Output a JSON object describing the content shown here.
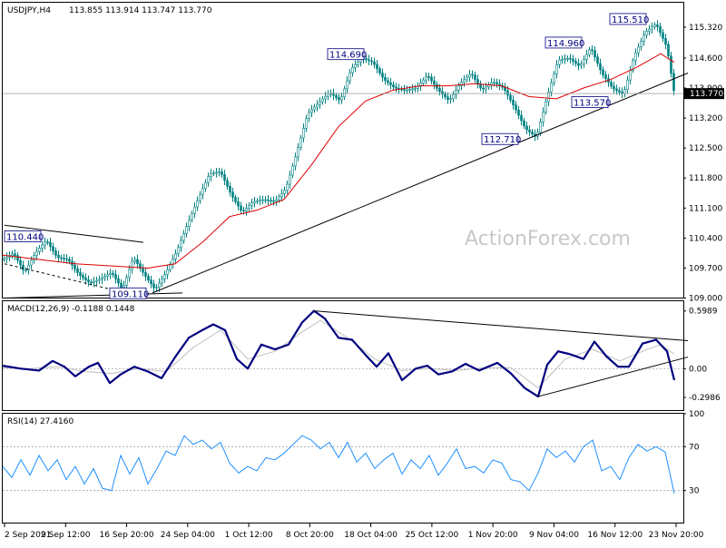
{
  "chart_data": [
    {
      "type": "candlestick",
      "symbol": "USDJPY,H4",
      "ohlc_readout": "113.855 113.914 113.747 113.770",
      "y_ticks": [
        "115.320",
        "114.600",
        "113.900",
        "113.200",
        "112.500",
        "111.800",
        "111.100",
        "110.400",
        "109.700",
        "109.000"
      ],
      "y_tick_values": [
        115.32,
        114.6,
        113.9,
        113.2,
        112.5,
        111.8,
        111.1,
        110.4,
        109.7,
        109.0
      ],
      "ylim": [
        108.99,
        115.89
      ],
      "current_price": "113.770",
      "current_price_value": 113.77,
      "x_ticks": [
        "2 Sep 2021",
        "9 Sep 12:00",
        "16 Sep 20:00",
        "24 Sep 04:00",
        "1 Oct 12:00",
        "8 Oct 20:00",
        "18 Oct 04:00",
        "25 Oct 12:00",
        "1 Nov 20:00",
        "9 Nov 04:00",
        "16 Nov 12:00",
        "23 Nov 20:00"
      ],
      "price_path": [
        [
          0,
          109.9
        ],
        [
          12,
          110.05
        ],
        [
          24,
          109.6
        ],
        [
          36,
          110.05
        ],
        [
          48,
          110.35
        ],
        [
          60,
          109.95
        ],
        [
          72,
          109.9
        ],
        [
          84,
          109.55
        ],
        [
          96,
          109.35
        ],
        [
          108,
          109.45
        ],
        [
          120,
          109.6
        ],
        [
          132,
          109.2
        ],
        [
          144,
          109.95
        ],
        [
          156,
          109.55
        ],
        [
          168,
          109.2
        ],
        [
          180,
          109.6
        ],
        [
          192,
          110.1
        ],
        [
          204,
          110.75
        ],
        [
          216,
          111.35
        ],
        [
          228,
          111.9
        ],
        [
          240,
          111.95
        ],
        [
          252,
          111.4
        ],
        [
          264,
          111.0
        ],
        [
          276,
          111.25
        ],
        [
          288,
          111.3
        ],
        [
          300,
          111.25
        ],
        [
          312,
          111.55
        ],
        [
          324,
          112.4
        ],
        [
          336,
          113.3
        ],
        [
          348,
          113.55
        ],
        [
          360,
          113.8
        ],
        [
          372,
          113.6
        ],
        [
          384,
          114.35
        ],
        [
          396,
          114.6
        ],
        [
          408,
          114.5
        ],
        [
          420,
          114.1
        ],
        [
          432,
          113.9
        ],
        [
          444,
          113.85
        ],
        [
          456,
          113.9
        ],
        [
          468,
          114.2
        ],
        [
          480,
          113.85
        ],
        [
          492,
          113.6
        ],
        [
          504,
          114.0
        ],
        [
          516,
          114.25
        ],
        [
          528,
          113.85
        ],
        [
          540,
          114.05
        ],
        [
          552,
          113.9
        ],
        [
          564,
          113.45
        ],
        [
          576,
          112.95
        ],
        [
          588,
          112.75
        ],
        [
          600,
          113.7
        ],
        [
          612,
          114.55
        ],
        [
          624,
          114.6
        ],
        [
          636,
          114.4
        ],
        [
          648,
          114.85
        ],
        [
          660,
          114.25
        ],
        [
          672,
          113.9
        ],
        [
          684,
          113.75
        ],
        [
          696,
          114.65
        ],
        [
          708,
          115.2
        ],
        [
          720,
          115.4
        ],
        [
          732,
          114.85
        ],
        [
          740,
          113.77
        ]
      ],
      "ma_path": [
        [
          0,
          110.0
        ],
        [
          40,
          109.9
        ],
        [
          80,
          109.8
        ],
        [
          120,
          109.75
        ],
        [
          160,
          109.7
        ],
        [
          190,
          109.8
        ],
        [
          220,
          110.3
        ],
        [
          250,
          110.9
        ],
        [
          280,
          111.05
        ],
        [
          310,
          111.3
        ],
        [
          340,
          112.1
        ],
        [
          370,
          113.0
        ],
        [
          400,
          113.6
        ],
        [
          430,
          113.85
        ],
        [
          460,
          113.95
        ],
        [
          490,
          113.95
        ],
        [
          520,
          114.0
        ],
        [
          550,
          113.95
        ],
        [
          580,
          113.7
        ],
        [
          610,
          113.65
        ],
        [
          640,
          113.9
        ],
        [
          670,
          114.1
        ],
        [
          700,
          114.4
        ],
        [
          725,
          114.7
        ],
        [
          740,
          114.5
        ]
      ],
      "trendlines": [
        {
          "from": [
            165,
            109.12
          ],
          "to": [
            755,
            114.25
          ]
        },
        {
          "from": [
            2,
            110.7
          ],
          "to": [
            155,
            110.3
          ]
        },
        {
          "from": [
            2,
            109.8
          ],
          "to": [
            130,
            109.15
          ]
        },
        {
          "from": [
            2,
            109.0
          ],
          "to": [
            198,
            109.12
          ]
        }
      ],
      "annotations": [
        {
          "label": "110.440",
          "x": 2,
          "y": 110.44
        },
        {
          "label": "109.110",
          "x": 118,
          "y": 109.11
        },
        {
          "label": "114.690",
          "x": 358,
          "y": 114.69
        },
        {
          "label": "112.710",
          "x": 528,
          "y": 112.71
        },
        {
          "label": "113.570",
          "x": 627,
          "y": 113.57
        },
        {
          "label": "114.960",
          "x": 598,
          "y": 114.96
        },
        {
          "label": "115.510",
          "x": 669,
          "y": 115.51
        }
      ],
      "colors": {
        "candle": "#008080",
        "ma": "#dd0000",
        "trend": "#000000",
        "label_text": "#000080",
        "current_bg": "#000000"
      }
    },
    {
      "type": "line",
      "title": "MACD(12,26,9) -0.1188 0.1448",
      "y_ticks": [
        "0.5989",
        "0.00",
        "-0.2986"
      ],
      "y_tick_values": [
        0.5989,
        0.0,
        -0.2986
      ],
      "ylim": [
        -0.44,
        0.7
      ],
      "macd_path": [
        [
          0,
          0.03
        ],
        [
          20,
          0.0
        ],
        [
          40,
          -0.02
        ],
        [
          55,
          0.08
        ],
        [
          68,
          0.02
        ],
        [
          80,
          -0.08
        ],
        [
          95,
          0.02
        ],
        [
          105,
          0.06
        ],
        [
          118,
          -0.15
        ],
        [
          130,
          -0.06
        ],
        [
          145,
          0.02
        ],
        [
          160,
          -0.03
        ],
        [
          175,
          -0.1
        ],
        [
          190,
          0.12
        ],
        [
          205,
          0.32
        ],
        [
          220,
          0.4
        ],
        [
          232,
          0.46
        ],
        [
          245,
          0.4
        ],
        [
          258,
          0.1
        ],
        [
          270,
          0.0
        ],
        [
          285,
          0.25
        ],
        [
          300,
          0.2
        ],
        [
          315,
          0.25
        ],
        [
          330,
          0.48
        ],
        [
          343,
          0.6
        ],
        [
          355,
          0.52
        ],
        [
          370,
          0.32
        ],
        [
          385,
          0.3
        ],
        [
          400,
          0.14
        ],
        [
          412,
          0.02
        ],
        [
          425,
          0.16
        ],
        [
          440,
          -0.12
        ],
        [
          455,
          0.0
        ],
        [
          468,
          0.03
        ],
        [
          480,
          -0.06
        ],
        [
          495,
          -0.03
        ],
        [
          510,
          0.05
        ],
        [
          525,
          -0.02
        ],
        [
          545,
          0.06
        ],
        [
          560,
          -0.05
        ],
        [
          575,
          -0.2
        ],
        [
          590,
          -0.29
        ],
        [
          600,
          0.04
        ],
        [
          612,
          0.18
        ],
        [
          625,
          0.15
        ],
        [
          640,
          0.1
        ],
        [
          652,
          0.28
        ],
        [
          665,
          0.13
        ],
        [
          678,
          0.02
        ],
        [
          690,
          0.02
        ],
        [
          705,
          0.26
        ],
        [
          720,
          0.3
        ],
        [
          732,
          0.18
        ],
        [
          740,
          -0.12
        ]
      ],
      "signal_path": [
        [
          0,
          0.01
        ],
        [
          30,
          0.0
        ],
        [
          60,
          0.02
        ],
        [
          90,
          -0.03
        ],
        [
          120,
          -0.05
        ],
        [
          150,
          0.0
        ],
        [
          180,
          -0.03
        ],
        [
          210,
          0.22
        ],
        [
          240,
          0.4
        ],
        [
          270,
          0.1
        ],
        [
          300,
          0.18
        ],
        [
          330,
          0.38
        ],
        [
          350,
          0.5
        ],
        [
          380,
          0.32
        ],
        [
          410,
          0.1
        ],
        [
          440,
          -0.02
        ],
        [
          470,
          0.0
        ],
        [
          500,
          -0.02
        ],
        [
          530,
          0.01
        ],
        [
          560,
          0.01
        ],
        [
          590,
          -0.2
        ],
        [
          620,
          0.1
        ],
        [
          650,
          0.2
        ],
        [
          680,
          0.08
        ],
        [
          710,
          0.2
        ],
        [
          725,
          0.25
        ],
        [
          740,
          0.15
        ]
      ],
      "trendlines": [
        {
          "from": [
            343,
            0.6
          ],
          "to": [
            755,
            0.29
          ]
        },
        {
          "from": [
            590,
            -0.29
          ],
          "to": [
            755,
            0.12
          ]
        }
      ],
      "colors": {
        "macd": "#000080",
        "signal": "#c0c0c0",
        "trend": "#000000"
      }
    },
    {
      "type": "line",
      "title": "RSI(14) 27.4160",
      "y_ticks": [
        "100",
        "70",
        "30"
      ],
      "y_tick_values": [
        100,
        70,
        30
      ],
      "ylim": [
        0,
        100
      ],
      "levels": [
        70,
        30
      ],
      "rsi_path": [
        [
          0,
          52
        ],
        [
          10,
          42
        ],
        [
          20,
          58
        ],
        [
          30,
          44
        ],
        [
          40,
          62
        ],
        [
          50,
          48
        ],
        [
          60,
          58
        ],
        [
          70,
          40
        ],
        [
          80,
          52
        ],
        [
          90,
          36
        ],
        [
          100,
          50
        ],
        [
          110,
          32
        ],
        [
          120,
          30
        ],
        [
          130,
          62
        ],
        [
          140,
          45
        ],
        [
          150,
          60
        ],
        [
          160,
          36
        ],
        [
          170,
          50
        ],
        [
          180,
          66
        ],
        [
          190,
          62
        ],
        [
          200,
          80
        ],
        [
          210,
          72
        ],
        [
          220,
          76
        ],
        [
          230,
          68
        ],
        [
          240,
          74
        ],
        [
          250,
          55
        ],
        [
          260,
          46
        ],
        [
          270,
          52
        ],
        [
          280,
          48
        ],
        [
          290,
          60
        ],
        [
          300,
          58
        ],
        [
          310,
          64
        ],
        [
          320,
          72
        ],
        [
          330,
          80
        ],
        [
          340,
          76
        ],
        [
          350,
          68
        ],
        [
          360,
          74
        ],
        [
          370,
          60
        ],
        [
          380,
          74
        ],
        [
          390,
          56
        ],
        [
          400,
          64
        ],
        [
          410,
          50
        ],
        [
          420,
          58
        ],
        [
          430,
          64
        ],
        [
          440,
          45
        ],
        [
          450,
          58
        ],
        [
          460,
          50
        ],
        [
          470,
          62
        ],
        [
          480,
          44
        ],
        [
          490,
          55
        ],
        [
          500,
          68
        ],
        [
          510,
          50
        ],
        [
          520,
          52
        ],
        [
          530,
          46
        ],
        [
          540,
          58
        ],
        [
          550,
          55
        ],
        [
          560,
          40
        ],
        [
          570,
          38
        ],
        [
          580,
          30
        ],
        [
          590,
          46
        ],
        [
          600,
          68
        ],
        [
          610,
          60
        ],
        [
          620,
          66
        ],
        [
          630,
          56
        ],
        [
          640,
          70
        ],
        [
          650,
          76
        ],
        [
          660,
          48
        ],
        [
          670,
          52
        ],
        [
          680,
          40
        ],
        [
          690,
          60
        ],
        [
          700,
          72
        ],
        [
          710,
          66
        ],
        [
          720,
          70
        ],
        [
          730,
          65
        ],
        [
          740,
          27.4
        ]
      ],
      "colors": {
        "rsi": "#1e90ff",
        "level": "#a0a0a0"
      }
    }
  ],
  "watermark": "ActionForex.com"
}
